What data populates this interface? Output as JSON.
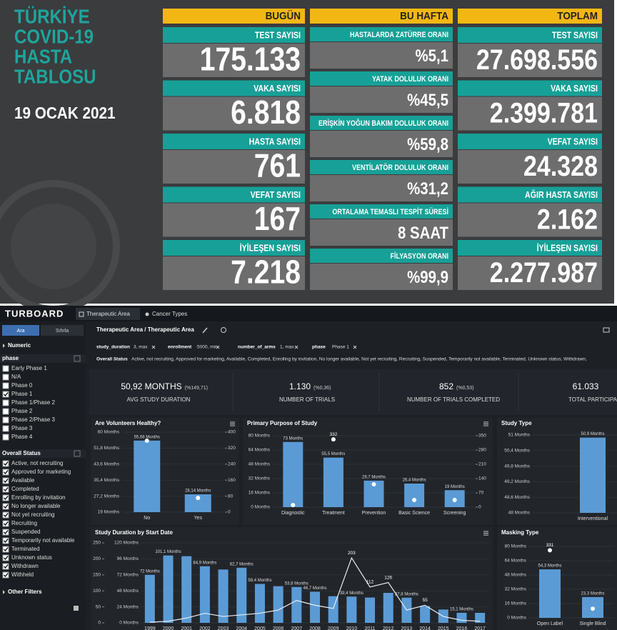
{
  "covid": {
    "title_lines": [
      "TÜRKİYE",
      "COVID-19",
      "HASTA",
      "TABLOSU"
    ],
    "date": "19 OCAK 2021",
    "columns": [
      {
        "header": "BUGÜN",
        "items": [
          {
            "label": "TEST SAYISI",
            "value": "175.133"
          },
          {
            "label": "VAKA SAYISI",
            "value": "6.818"
          },
          {
            "label": "HASTA SAYISI",
            "value": "761"
          },
          {
            "label": "VEFAT SAYISI",
            "value": "167"
          },
          {
            "label": "İYİLEŞEN SAYISI",
            "value": "7.218"
          }
        ]
      },
      {
        "header": "BU HAFTA",
        "items": [
          {
            "label": "HASTALARDA ZATÜRRE ORANI",
            "value": "%5,1"
          },
          {
            "label": "YATAK DOLULUK ORANI",
            "value": "%45,5"
          },
          {
            "label": "ERİŞKİN YOĞUN BAKIM DOLULUK ORANI",
            "value": "%59,8"
          },
          {
            "label": "VENTİLATÖR DOLULUK ORANI",
            "value": "%31,2"
          },
          {
            "label": "ORTALAMA TEMASLI TESPİT SÜRESİ",
            "value": "8 SAAT"
          },
          {
            "label": "FİLYASYON ORANI",
            "value": "%99,9"
          }
        ]
      },
      {
        "header": "TOPLAM",
        "items": [
          {
            "label": "TEST SAYISI",
            "value": "27.698.556"
          },
          {
            "label": "VAKA SAYISI",
            "value": "2.399.781"
          },
          {
            "label": "VEFAT SAYISI",
            "value": "24.328"
          },
          {
            "label": "AĞIR HASTA SAYISI",
            "value": "2.162"
          },
          {
            "label": "İYİLEŞEN SAYISI",
            "value": "2.277.987"
          }
        ]
      }
    ]
  },
  "dashboard": {
    "brand": "TURBOARD",
    "tabs": [
      "Therapeutic Area",
      "Cancer Types"
    ],
    "sidebar": {
      "buttons": [
        "Ara",
        "Sıfırla"
      ],
      "numeric": "Numeric",
      "phase": {
        "title": "phase",
        "options": [
          "Early Phase 1",
          "N/A",
          "Phase 0",
          "Phase 1",
          "Phase 1/Phase 2",
          "Phase 2",
          "Phase 2/Phase 3",
          "Phase 3",
          "Phase 4"
        ],
        "checked": [
          false,
          false,
          false,
          true,
          false,
          false,
          false,
          false,
          false
        ]
      },
      "overall_status": {
        "title": "Overall Status",
        "options": [
          "Active, not recruiting",
          "Approved for marketing",
          "Available",
          "Completed",
          "Enrolling by invitation",
          "No longer available",
          "Not yet recruiting",
          "Recruiting",
          "Suspended",
          "Temporarily not available",
          "Terminated",
          "Unknown status",
          "Withdrawn",
          "Withheld"
        ],
        "checked": [
          true,
          true,
          true,
          true,
          true,
          true,
          true,
          true,
          true,
          true,
          true,
          true,
          true,
          true
        ]
      },
      "other": "Other Filters"
    },
    "breadcrumb": "Therapeutic Area / Therapeutic Area",
    "filters": [
      {
        "name": "study_duration",
        "value": "3, max"
      },
      {
        "name": "enrollment",
        "value": "5000, min"
      },
      {
        "name": "number_of_arms",
        "value": "1, max"
      },
      {
        "name": "phase",
        "value": "Phase 1"
      }
    ],
    "status_filter": {
      "name": "Overall Status",
      "value": "Active, not recruiting, Approved for marketing, Available, Completed, Enrolling by invitation, No longer available, Not yet recruiting, Recruiting, Suspended, Temporarily not available, Terminated, Unknown status, Withdrawn,"
    },
    "kpis": [
      {
        "value": "50,92 MONTHS",
        "change": "(%149,71)",
        "label": "AVG STUDY DURATION"
      },
      {
        "value": "1.130",
        "change": "(%0,36)",
        "label": "NUMBER OF TRIALS"
      },
      {
        "value": "852",
        "change": "(%0,53)",
        "label": "NUMBER OF TRIALS COMPLETED"
      },
      {
        "value": "61.033",
        "label": "TOTAL PARTICIPA"
      }
    ],
    "charts": [
      {
        "type": "bar",
        "title": "Are Volunteers Healthy?",
        "color": "#5b9bd5",
        "categories": [
          "No",
          "Yes"
        ],
        "values": [
          55.68,
          28.14
        ],
        "value_labels": [
          "55,68 Months",
          "28,14 Months"
        ],
        "dots": [
          357,
          71
        ],
        "ylim": [
          19,
          60
        ],
        "yticks": [
          {
            "value": 19,
            "label": "19 Months"
          },
          {
            "value": 27.2,
            "label": "27,2 Months"
          },
          {
            "value": 35.4,
            "label": "35,4 Months"
          },
          {
            "value": 43.6,
            "label": "43,6 Months"
          },
          {
            "value": 51.8,
            "label": "51,8 Months"
          },
          {
            "value": 60,
            "label": "60 Months"
          }
        ],
        "y2lim": [
          0,
          400
        ],
        "y2ticks": [
          0,
          80,
          160,
          240,
          320,
          400
        ]
      },
      {
        "type": "bar",
        "title": "Primary Purpose of Study",
        "color": "#5b9bd5",
        "categories": [
          "Diagnostic",
          "Treatment",
          "Prevention",
          "Basic Science",
          "Screening"
        ],
        "values": [
          73,
          55.5,
          29.7,
          26.4,
          19
        ],
        "value_labels": [
          "73 Months",
          "55,5 Months",
          "29,7 Months",
          "26,4 Months",
          "19 Months"
        ],
        "dots": [
          10,
          332,
          112,
          35,
          35
        ],
        "dot_labels": [
          null,
          "332",
          null,
          null,
          null
        ],
        "ylim": [
          0,
          80
        ],
        "yticks": [
          {
            "value": 0,
            "label": "0 Months"
          },
          {
            "value": 16,
            "label": "16 Months"
          },
          {
            "value": 32,
            "label": "32 Months"
          },
          {
            "value": 48,
            "label": "48 Months"
          },
          {
            "value": 64,
            "label": "64 Months"
          },
          {
            "value": 80,
            "label": "80 Months"
          }
        ],
        "y2lim": [
          0,
          350
        ],
        "y2ticks": [
          0,
          70,
          140,
          210,
          280,
          350
        ]
      },
      {
        "type": "bar",
        "title": "Study Type",
        "color": "#5b9bd5",
        "categories": [
          "Interventional"
        ],
        "values": [
          50.9
        ],
        "value_labels": [
          "50,9 Months"
        ],
        "ylim": [
          48,
          51
        ],
        "yticks": [
          {
            "value": 48,
            "label": "48 Months"
          },
          {
            "value": 48.6,
            "label": "48,6 Months"
          },
          {
            "value": 49.2,
            "label": "49,2 Months"
          },
          {
            "value": 49.8,
            "label": "49,8 Months"
          },
          {
            "value": 50.4,
            "label": "50,4 Months"
          },
          {
            "value": 51,
            "label": "51 Months"
          }
        ]
      },
      {
        "type": "bar",
        "title": "Study Duration by Start Date",
        "color": "#5b9bd5",
        "categories": [
          "1999",
          "2000",
          "2001",
          "2002",
          "2003",
          "2004",
          "2005",
          "2006",
          "2007",
          "2008",
          "2009",
          "2010",
          "2011",
          "2012",
          "2013",
          "2014",
          "2015",
          "2016",
          "2017"
        ],
        "values": [
          72,
          101.1,
          100,
          84.9,
          80,
          82.7,
          58.4,
          55,
          53.8,
          46.7,
          40,
          39.4,
          38,
          45,
          37.8,
          25,
          20,
          15.1,
          15
        ],
        "value_labels": [
          "72 Months",
          "101,1 Months",
          null,
          "84,9 Months",
          null,
          "82,7 Months",
          "58,4 Months",
          null,
          "53,8 Months",
          "46,7 Months",
          null,
          "39,4 Months",
          null,
          null,
          "37,8 Months",
          null,
          null,
          "15,1 Months",
          null
        ],
        "line": [
          2,
          5,
          15,
          30,
          20,
          25,
          30,
          40,
          70,
          55,
          45,
          203,
          112,
          126,
          40,
          55,
          20,
          8,
          5
        ],
        "line_labels": [
          null,
          null,
          null,
          null,
          null,
          null,
          null,
          null,
          null,
          null,
          null,
          "203",
          "112",
          "126",
          null,
          "55",
          null,
          null,
          null
        ],
        "ylim": [
          0,
          120
        ],
        "yticks": [
          {
            "value": 0,
            "label": "0 Months"
          },
          {
            "value": 24,
            "label": "24 Months"
          },
          {
            "value": 48,
            "label": "48 Months"
          },
          {
            "value": 72,
            "label": "72 Months"
          },
          {
            "value": 96,
            "label": "96 Months"
          },
          {
            "value": 120,
            "label": "120 Months"
          }
        ],
        "y2lim": [
          0,
          250
        ],
        "y2ticks": [
          0,
          50,
          100,
          150,
          200,
          250
        ]
      },
      {
        "type": "bar",
        "title": "Masking Type",
        "color": "#5b9bd5",
        "categories": [
          "Open Label",
          "Single Blind"
        ],
        "values": [
          54.3,
          23.3
        ],
        "value_labels": [
          "54,3 Months",
          "23,3 Months"
        ],
        "dots": [
          331,
          45
        ],
        "dot_labels": [
          "331",
          null
        ],
        "ylim": [
          0,
          80
        ],
        "yticks": [
          {
            "value": 0,
            "label": "0 Months"
          },
          {
            "value": 16,
            "label": "16 Months"
          },
          {
            "value": 32,
            "label": "32 Months"
          },
          {
            "value": 48,
            "label": "48 Months"
          },
          {
            "value": 64,
            "label": "64 Months"
          },
          {
            "value": 80,
            "label": "80 Months"
          }
        ],
        "y2lim": [
          0,
          350
        ]
      }
    ]
  }
}
